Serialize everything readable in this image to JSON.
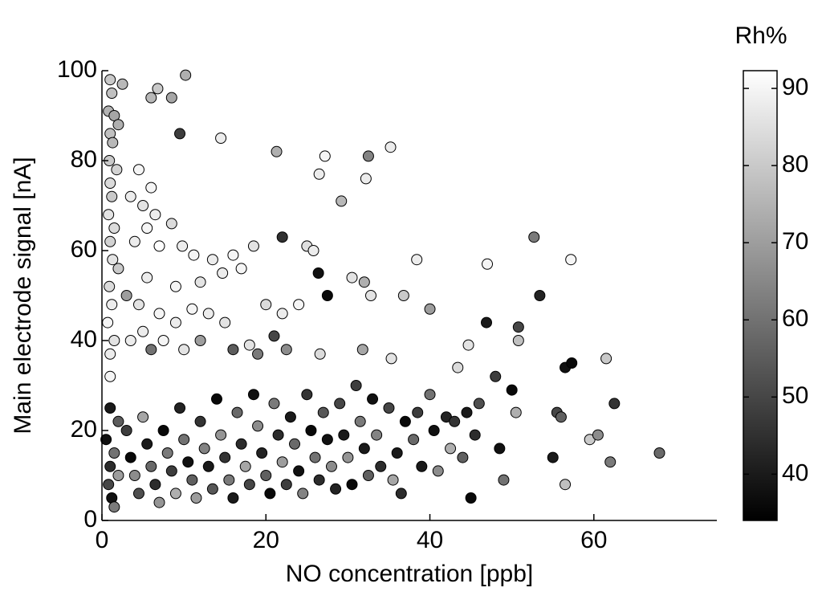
{
  "chart_data": {
    "type": "scatter",
    "xlabel": "NO concentration [ppb]",
    "ylabel": "Main electrode signal [nA]",
    "colorbar_label": "Rh%",
    "colormap": "gray",
    "xlim": [
      0,
      75
    ],
    "xticks": [
      0,
      20,
      40,
      60
    ],
    "ylim": [
      0,
      100
    ],
    "yticks": [
      0,
      20,
      40,
      60,
      80,
      100
    ],
    "clim": [
      34,
      92.3
    ],
    "cticks": [
      40,
      50,
      60,
      70,
      80,
      90
    ],
    "point_columns": [
      "x",
      "y",
      "rh"
    ],
    "points": [
      [
        1,
        98,
        80
      ],
      [
        1.2,
        95,
        78
      ],
      [
        0.8,
        91,
        75
      ],
      [
        1.5,
        90,
        72
      ],
      [
        2,
        88,
        74
      ],
      [
        1,
        86,
        78
      ],
      [
        1.3,
        84,
        76
      ],
      [
        0.9,
        80,
        80
      ],
      [
        1.8,
        78,
        82
      ],
      [
        1,
        75,
        84
      ],
      [
        1.2,
        72,
        80
      ],
      [
        0.8,
        68,
        86
      ],
      [
        1.5,
        65,
        84
      ],
      [
        1,
        62,
        82
      ],
      [
        1.3,
        58,
        86
      ],
      [
        2,
        56,
        80
      ],
      [
        0.9,
        52,
        84
      ],
      [
        1.2,
        48,
        88
      ],
      [
        0.7,
        44,
        90
      ],
      [
        1.5,
        40,
        86
      ],
      [
        1,
        37,
        88
      ],
      [
        1,
        32,
        90
      ],
      [
        2.5,
        97,
        76
      ],
      [
        6,
        94,
        76
      ],
      [
        6.8,
        96,
        80
      ],
      [
        8.5,
        94,
        72
      ],
      [
        10.2,
        99,
        74
      ],
      [
        9.5,
        86,
        48
      ],
      [
        14.5,
        85,
        88
      ],
      [
        21.3,
        82,
        74
      ],
      [
        27.2,
        81,
        90
      ],
      [
        26.5,
        77,
        88
      ],
      [
        32.5,
        81,
        64
      ],
      [
        32.2,
        76,
        88
      ],
      [
        35.2,
        83,
        88
      ],
      [
        29.2,
        71,
        76
      ],
      [
        22,
        63,
        45
      ],
      [
        25,
        61,
        85
      ],
      [
        25.8,
        60,
        88
      ],
      [
        52.7,
        63,
        62
      ],
      [
        57.2,
        58,
        90
      ],
      [
        47,
        57,
        90
      ],
      [
        38.4,
        58,
        88
      ],
      [
        30.5,
        54,
        86
      ],
      [
        32,
        53,
        74
      ],
      [
        32.8,
        50,
        86
      ],
      [
        36.8,
        50,
        80
      ],
      [
        40,
        47,
        70
      ],
      [
        26.4,
        55,
        38
      ],
      [
        27.5,
        50,
        36
      ],
      [
        53.4,
        50,
        42
      ],
      [
        46.9,
        44,
        40
      ],
      [
        50.8,
        43,
        50
      ],
      [
        50.8,
        40,
        78
      ],
      [
        44.7,
        39,
        86
      ],
      [
        43.4,
        34,
        84
      ],
      [
        56.5,
        34,
        38
      ],
      [
        57.3,
        35,
        36
      ],
      [
        61.5,
        36,
        80
      ],
      [
        35.3,
        36,
        86
      ],
      [
        26.6,
        37,
        84
      ],
      [
        31.8,
        38,
        72
      ],
      [
        4.5,
        78,
        90
      ],
      [
        6,
        74,
        90
      ],
      [
        3.5,
        72,
        88
      ],
      [
        5,
        70,
        86
      ],
      [
        6.5,
        68,
        88
      ],
      [
        8.5,
        66,
        84
      ],
      [
        5.5,
        65,
        90
      ],
      [
        4,
        62,
        88
      ],
      [
        7,
        61,
        92
      ],
      [
        9.8,
        61,
        88
      ],
      [
        11.2,
        59,
        90
      ],
      [
        13.5,
        58,
        88
      ],
      [
        16,
        59,
        90
      ],
      [
        18.5,
        61,
        86
      ],
      [
        17,
        56,
        90
      ],
      [
        14.7,
        55,
        88
      ],
      [
        12,
        53,
        86
      ],
      [
        9,
        52,
        90
      ],
      [
        5.5,
        54,
        88
      ],
      [
        3,
        50,
        70
      ],
      [
        4.5,
        48,
        86
      ],
      [
        7,
        46,
        90
      ],
      [
        9,
        44,
        88
      ],
      [
        11,
        47,
        90
      ],
      [
        13,
        46,
        88
      ],
      [
        15,
        44,
        86
      ],
      [
        20,
        48,
        84
      ],
      [
        22,
        46,
        88
      ],
      [
        24,
        48,
        90
      ],
      [
        5,
        42,
        88
      ],
      [
        7.5,
        40,
        90
      ],
      [
        10,
        38,
        86
      ],
      [
        3.5,
        40,
        88
      ],
      [
        6,
        38,
        60
      ],
      [
        12,
        40,
        70
      ],
      [
        16,
        38,
        55
      ],
      [
        18,
        39,
        86
      ],
      [
        19,
        37,
        62
      ],
      [
        21,
        41,
        50
      ],
      [
        22.5,
        38,
        66
      ],
      [
        1,
        25,
        40
      ],
      [
        2,
        22,
        55
      ],
      [
        0.5,
        18,
        38
      ],
      [
        1.5,
        15,
        60
      ],
      [
        1,
        12,
        44
      ],
      [
        2,
        10,
        70
      ],
      [
        0.8,
        8,
        50
      ],
      [
        1.2,
        5,
        38
      ],
      [
        1.5,
        3,
        62
      ],
      [
        3,
        20,
        48
      ],
      [
        3.5,
        14,
        36
      ],
      [
        4,
        10,
        66
      ],
      [
        4.5,
        6,
        52
      ],
      [
        5,
        23,
        72
      ],
      [
        5.5,
        17,
        40
      ],
      [
        6,
        12,
        58
      ],
      [
        6.5,
        8,
        44
      ],
      [
        7,
        4,
        68
      ],
      [
        7.5,
        20,
        36
      ],
      [
        8,
        15,
        62
      ],
      [
        8.5,
        11,
        48
      ],
      [
        9,
        6,
        74
      ],
      [
        9.5,
        25,
        42
      ],
      [
        10,
        18,
        60
      ],
      [
        10.5,
        13,
        38
      ],
      [
        11,
        9,
        56
      ],
      [
        11.5,
        5,
        70
      ],
      [
        12,
        22,
        46
      ],
      [
        12.5,
        16,
        64
      ],
      [
        13,
        12,
        40
      ],
      [
        13.5,
        7,
        54
      ],
      [
        14,
        27,
        36
      ],
      [
        14.5,
        19,
        68
      ],
      [
        15,
        14,
        46
      ],
      [
        15.5,
        9,
        62
      ],
      [
        16,
        5,
        40
      ],
      [
        16.5,
        24,
        58
      ],
      [
        17,
        17,
        44
      ],
      [
        17.5,
        12,
        72
      ],
      [
        18,
        8,
        50
      ],
      [
        18.5,
        28,
        38
      ],
      [
        19,
        21,
        66
      ],
      [
        19.5,
        15,
        42
      ],
      [
        20,
        10,
        56
      ],
      [
        20.5,
        6,
        36
      ],
      [
        21,
        26,
        62
      ],
      [
        21.5,
        19,
        44
      ],
      [
        22,
        13,
        70
      ],
      [
        22.5,
        8,
        48
      ],
      [
        23,
        23,
        40
      ],
      [
        23.5,
        17,
        58
      ],
      [
        24,
        11,
        38
      ],
      [
        24.5,
        6,
        64
      ],
      [
        25,
        28,
        46
      ],
      [
        25.5,
        20,
        36
      ],
      [
        26,
        14,
        60
      ],
      [
        26.5,
        9,
        44
      ],
      [
        27,
        24,
        54
      ],
      [
        27.5,
        18,
        38
      ],
      [
        28,
        12,
        66
      ],
      [
        28.5,
        7,
        42
      ],
      [
        29,
        26,
        50
      ],
      [
        29.5,
        19,
        40
      ],
      [
        30,
        14,
        68
      ],
      [
        30.5,
        8,
        36
      ],
      [
        31,
        30,
        48
      ],
      [
        31.5,
        22,
        62
      ],
      [
        32,
        16,
        40
      ],
      [
        32.5,
        10,
        56
      ],
      [
        33,
        27,
        38
      ],
      [
        33.5,
        19,
        64
      ],
      [
        34,
        12,
        44
      ],
      [
        35,
        25,
        50
      ],
      [
        35.5,
        9,
        72
      ],
      [
        36,
        15,
        40
      ],
      [
        36.5,
        6,
        44
      ],
      [
        37,
        22,
        36
      ],
      [
        38,
        18,
        58
      ],
      [
        38.5,
        24,
        48
      ],
      [
        39,
        12,
        40
      ],
      [
        40,
        28,
        60
      ],
      [
        40.5,
        20,
        38
      ],
      [
        41,
        11,
        66
      ],
      [
        42,
        23,
        42
      ],
      [
        42.5,
        16,
        74
      ],
      [
        43,
        22,
        46
      ],
      [
        44,
        14,
        56
      ],
      [
        44.5,
        24,
        40
      ],
      [
        45,
        5,
        36
      ],
      [
        45.5,
        19,
        44
      ],
      [
        46,
        26,
        52
      ],
      [
        48,
        32,
        48
      ],
      [
        48.5,
        16,
        38
      ],
      [
        49,
        9,
        60
      ],
      [
        50,
        29,
        36
      ],
      [
        50.5,
        24,
        74
      ],
      [
        55,
        14,
        40
      ],
      [
        55.5,
        24,
        50
      ],
      [
        56,
        23,
        56
      ],
      [
        56.5,
        8,
        78
      ],
      [
        59.5,
        18,
        80
      ],
      [
        60.5,
        19,
        66
      ],
      [
        62,
        13,
        62
      ],
      [
        62.5,
        26,
        46
      ],
      [
        68,
        15,
        58
      ]
    ]
  }
}
